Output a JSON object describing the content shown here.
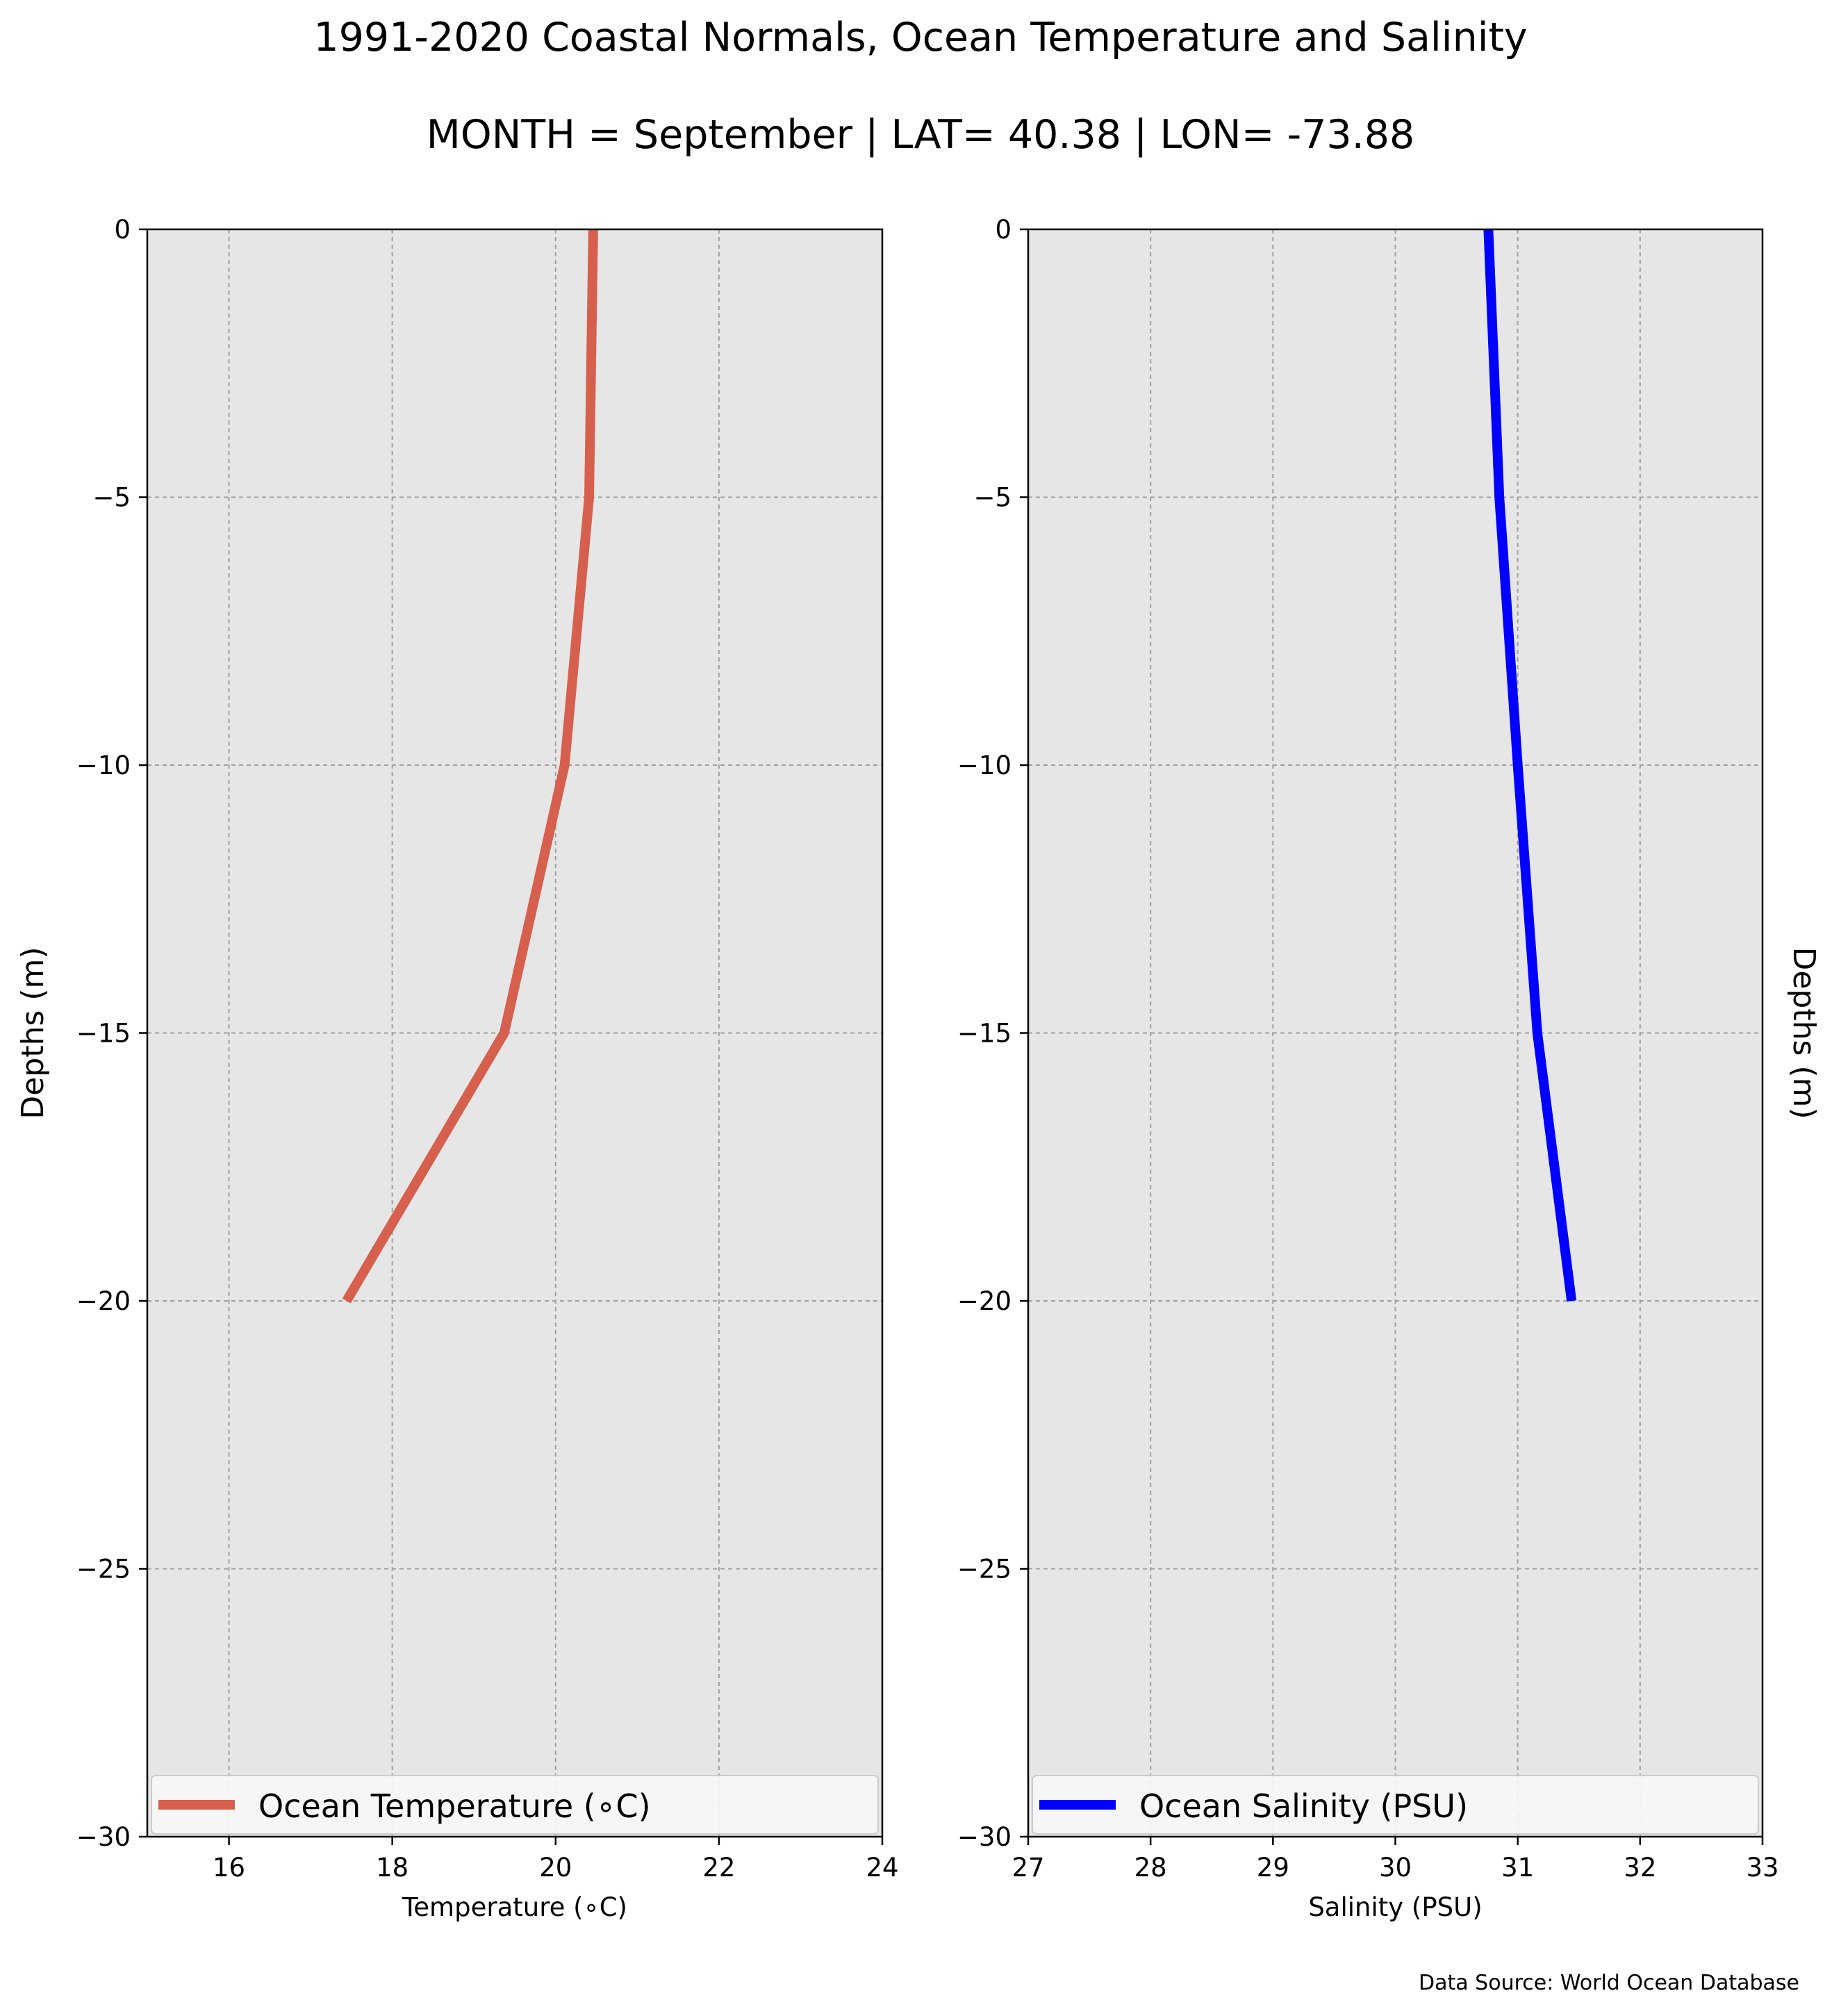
{
  "figure": {
    "title": "1991-2020 Coastal Normals, Ocean Temperature and Salinity",
    "subtitle": "MONTH = September | LAT= 40.38 | LON= -73.88",
    "source_note": "Data Source: World Ocean Database",
    "background": "#ffffff"
  },
  "chart_data": [
    {
      "type": "line",
      "xlabel": "Temperature (∘C)",
      "ylabel": "Depths (m)",
      "xlim": [
        15,
        24
      ],
      "ylim": [
        -30,
        0
      ],
      "xticks": [
        16,
        18,
        20,
        22,
        24
      ],
      "yticks": [
        0,
        -5,
        -10,
        -15,
        -20,
        -25,
        -30
      ],
      "xtick_labels": [
        "16",
        "18",
        "20",
        "22",
        "24"
      ],
      "ytick_labels": [
        "0",
        "−5",
        "−10",
        "−15",
        "−20",
        "−25",
        "−30"
      ],
      "grid": true,
      "legend": "bottom",
      "axes_background": "#e6e6e6",
      "series": [
        {
          "name": "Ocean Temperature (∘C)",
          "color": "#d6604d",
          "x": [
            20.46,
            20.41,
            20.11,
            19.37,
            17.44
          ],
          "y": [
            0,
            -5,
            -10,
            -15,
            -20
          ]
        }
      ]
    },
    {
      "type": "line",
      "xlabel": "Salinity (PSU)",
      "ylabel": "Depths (m)",
      "xlim": [
        27,
        33
      ],
      "ylim": [
        -30,
        0
      ],
      "xticks": [
        27,
        28,
        29,
        30,
        31,
        32,
        33
      ],
      "yticks": [
        0,
        -5,
        -10,
        -15,
        -20,
        -25,
        -30
      ],
      "xtick_labels": [
        "27",
        "28",
        "29",
        "30",
        "31",
        "32",
        "33"
      ],
      "ytick_labels": [
        "0",
        "−5",
        "−10",
        "−15",
        "−20",
        "−25",
        "−30"
      ],
      "grid": true,
      "legend": "bottom",
      "axes_background": "#e6e6e6",
      "series": [
        {
          "name": "Ocean Salinity (PSU)",
          "color": "#0000ff",
          "x": [
            30.76,
            30.85,
            31.0,
            31.16,
            31.44
          ],
          "y": [
            0,
            -5,
            -10,
            -15,
            -20
          ]
        }
      ]
    }
  ]
}
